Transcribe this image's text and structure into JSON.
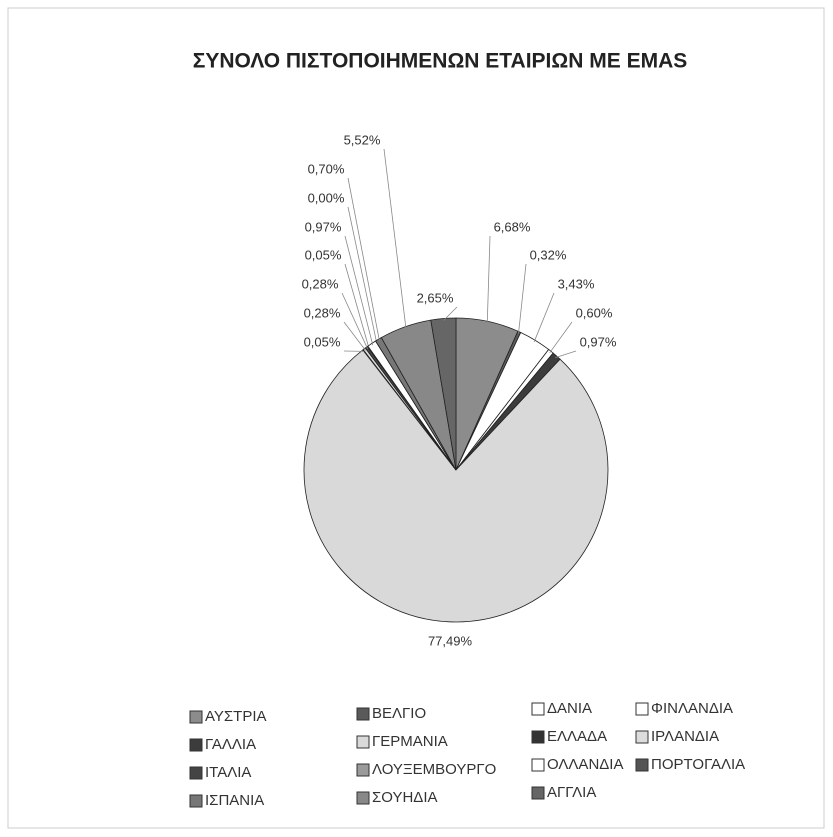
{
  "chart_data": {
    "type": "pie",
    "title": "ΣΥΝΟΛΟ ΠΙΣΤΟΠΟΙΗΜΕΝΩΝ ΕΤΑΙΡΙΩΝ ΜΕ EMAS",
    "categories": [
      "ΑΥΣΤΡΙΑ",
      "ΒΕΛΓΙΟ",
      "ΔΑΝΙΑ",
      "ΦΙΝΛΑΝΔΙΑ",
      "ΓΑΛΛΙΑ",
      "ΓΕΡΜΑΝΙΑ",
      "ΕΛΛΑΔΑ",
      "ΙΡΛΑΝΔΙΑ",
      "ΙΤΑΛΙΑ",
      "ΛΟΥΞΕΜΒΟΥΡΓΟ",
      "ΟΛΛΑΝΔΙΑ",
      "ΠΟΡΤΟΓΑΛΙΑ",
      "ΙΣΠΑΝΙΑ",
      "ΣΟΥΗΔΙΑ",
      "ΑΓΓΛΙΑ"
    ],
    "values": [
      6.68,
      0.32,
      3.43,
      0.6,
      0.97,
      77.49,
      0.05,
      0.28,
      0.28,
      0.05,
      0.97,
      0.0,
      0.7,
      5.52,
      2.65
    ],
    "value_labels": [
      "6,68%",
      "0,32%",
      "3,43%",
      "0,60%",
      "0,97%",
      "77,49%",
      "0,05%",
      "0,28%",
      "0,28%",
      "0,05%",
      "0,97%",
      "0,00%",
      "0,70%",
      "5,52%",
      "2,65%"
    ],
    "colors": [
      "#8c8c8c",
      "#5a5a5a",
      "#ffffff",
      "#ffffff",
      "#3c3c3c",
      "#d9d9d9",
      "#333333",
      "#dcdcdc",
      "#444444",
      "#9a9a9a",
      "#ffffff",
      "#555555",
      "#777777",
      "#888888",
      "#666666"
    ],
    "legend": "bottom"
  }
}
